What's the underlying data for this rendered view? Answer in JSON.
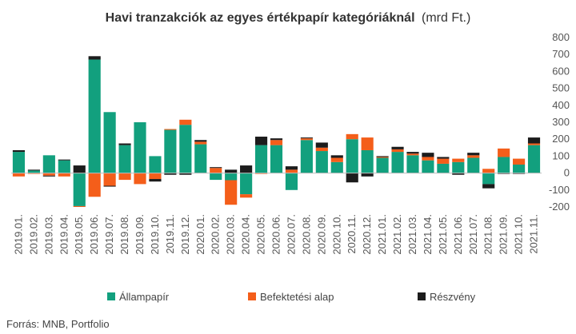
{
  "chart_data": {
    "type": "bar",
    "stacked": true,
    "title": "Havi tranzakciók az egyes értékpapír kategóriáknál",
    "subtitle": "(mrd Ft.)",
    "source": "Forrás: MNB, Portfolio",
    "ylim": [
      -200,
      800
    ],
    "yticks": [
      -200,
      -100,
      0,
      100,
      200,
      300,
      400,
      500,
      600,
      700,
      800
    ],
    "y_axis_position": "right",
    "grid": false,
    "legend_position": "bottom",
    "categories": [
      "2019.01.",
      "2019.02.",
      "2019.03.",
      "2019.04.",
      "2019.05.",
      "2019.06.",
      "2019.07.",
      "2019.08.",
      "2019.09.",
      "2019.10.",
      "2019.11.",
      "2019.12.",
      "2020.01.",
      "2020.02.",
      "2020.03.",
      "2020.04.",
      "2020.05.",
      "2020.06.",
      "2020.07.",
      "2020.08.",
      "2020.09.",
      "2020.10.",
      "2020.11.",
      "2020.12.",
      "2021.01.",
      "2021.02.",
      "2021.03.",
      "2021.04.",
      "2021.05.",
      "2021.06.",
      "2021.07.",
      "2021.08.",
      "2021.09.",
      "2021.10.",
      "2021.11."
    ],
    "series": [
      {
        "name": "Állampapír",
        "color": "#12a07e",
        "values": [
          125,
          15,
          105,
          75,
          -195,
          670,
          360,
          165,
          300,
          100,
          255,
          285,
          170,
          -40,
          -42,
          -125,
          165,
          165,
          -100,
          195,
          130,
          65,
          200,
          135,
          90,
          125,
          105,
          75,
          55,
          65,
          90,
          -65,
          95,
          50,
          165
        ]
      },
      {
        "name": "Befektetési alap",
        "color": "#f45e1a",
        "values": [
          -20,
          -5,
          -15,
          -20,
          -5,
          -140,
          -75,
          -40,
          -65,
          -35,
          5,
          30,
          15,
          30,
          -145,
          -20,
          -5,
          30,
          20,
          10,
          20,
          25,
          30,
          75,
          5,
          15,
          10,
          20,
          30,
          20,
          15,
          25,
          50,
          35,
          10
        ]
      },
      {
        "name": "Részvény",
        "color": "#1c1c1c",
        "values": [
          10,
          5,
          -5,
          5,
          45,
          20,
          -5,
          10,
          0,
          -15,
          -10,
          -10,
          10,
          5,
          20,
          45,
          50,
          10,
          20,
          5,
          30,
          15,
          -55,
          -20,
          5,
          15,
          10,
          25,
          10,
          -10,
          15,
          -25,
          -5,
          -5,
          35
        ]
      }
    ]
  }
}
